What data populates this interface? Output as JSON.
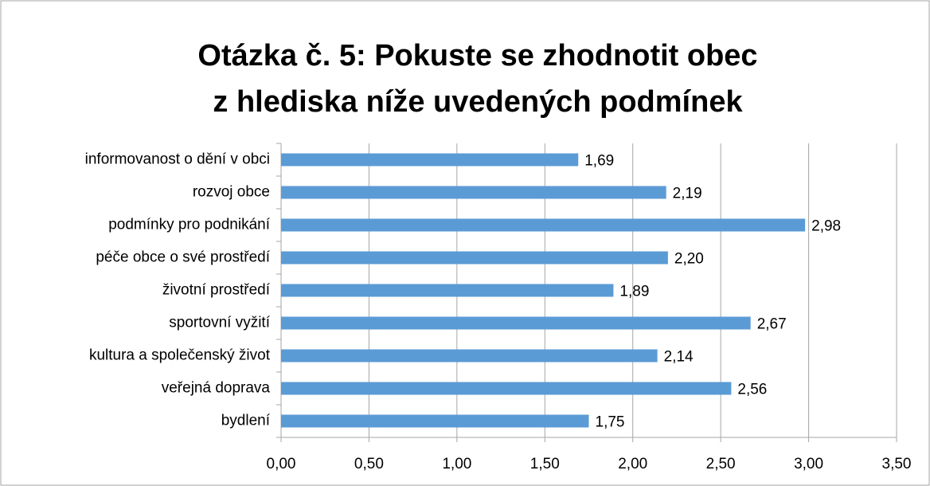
{
  "chart_data": {
    "type": "bar",
    "orientation": "horizontal",
    "title": [
      "Otázka č. 5: Pokuste se zhodnotit obec",
      "z hlediska níže uvedených podmínek"
    ],
    "categories": [
      "informovanost o dění v obci",
      "rozvoj obce",
      "podmínky pro podnikání",
      "péče obce o své prostředí",
      "životní prostředí",
      "sportovní vyžití",
      "kultura a společenský život",
      "veřejná doprava",
      "bydlení"
    ],
    "values": [
      1.69,
      2.19,
      2.98,
      2.2,
      1.89,
      2.67,
      2.14,
      2.56,
      1.75
    ],
    "value_labels": [
      "1,69",
      "2,19",
      "2,98",
      "2,20",
      "1,89",
      "2,67",
      "2,14",
      "2,56",
      "1,75"
    ],
    "color": "#5b9bd5",
    "xlim": [
      0,
      3.5
    ],
    "xticks": [
      {
        "value": 0,
        "label": "0,00"
      },
      {
        "value": 0.5,
        "label": "0,50"
      },
      {
        "value": 1,
        "label": "1,00"
      },
      {
        "value": 1.5,
        "label": "1,50"
      },
      {
        "value": 2,
        "label": "2,00"
      },
      {
        "value": 2.5,
        "label": "2,50"
      },
      {
        "value": 3,
        "label": "3,00"
      },
      {
        "value": 3.5,
        "label": "3,50"
      }
    ],
    "grid": true
  }
}
